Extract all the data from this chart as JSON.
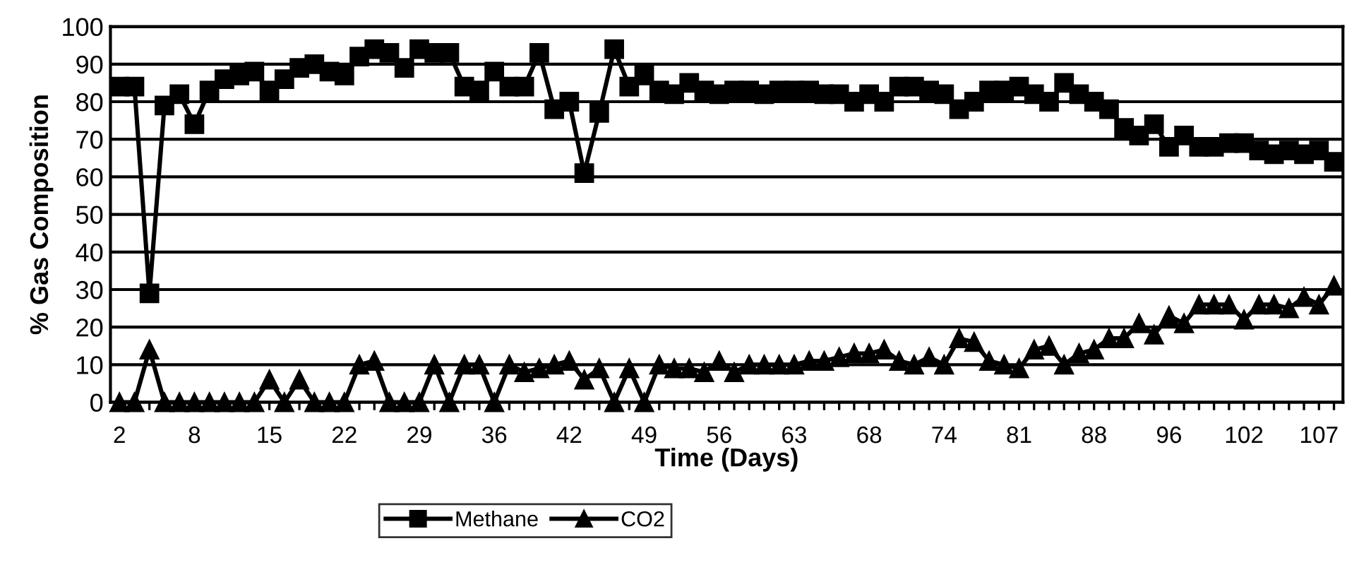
{
  "chart_data": {
    "type": "line",
    "xlabel": "Time (Days)",
    "ylabel": "% Gas Composition",
    "categories": [
      "2",
      null,
      null,
      null,
      null,
      "8",
      null,
      null,
      null,
      null,
      "15",
      null,
      null,
      null,
      null,
      "22",
      null,
      null,
      null,
      null,
      "29",
      null,
      null,
      null,
      null,
      "36",
      null,
      null,
      null,
      null,
      "42",
      null,
      null,
      null,
      null,
      "49",
      null,
      null,
      null,
      null,
      "56",
      null,
      null,
      null,
      null,
      "63",
      null,
      null,
      null,
      null,
      "68",
      null,
      null,
      null,
      null,
      "74",
      null,
      null,
      null,
      null,
      "81",
      null,
      null,
      null,
      null,
      "88",
      null,
      null,
      null,
      null,
      "96",
      null,
      null,
      null,
      null,
      "102",
      null,
      null,
      null,
      null,
      "107",
      null
    ],
    "series": [
      {
        "name": "Methane",
        "color": "#000000",
        "marker": "square",
        "values": [
          84,
          84,
          29,
          79,
          82,
          74,
          83,
          86,
          87,
          88,
          83,
          86,
          89,
          90,
          88,
          87,
          92,
          94,
          93,
          89,
          94,
          93,
          93,
          84,
          83,
          88,
          84,
          84,
          93,
          78,
          80,
          61,
          77,
          94,
          84,
          87,
          83,
          82,
          85,
          83,
          82,
          83,
          83,
          82,
          83,
          83,
          83,
          82,
          82,
          80,
          82,
          80,
          84,
          84,
          83,
          82,
          78,
          80,
          83,
          83,
          84,
          82,
          80,
          85,
          82,
          80,
          78,
          73,
          71,
          74,
          68,
          71,
          68,
          68,
          69,
          69,
          67,
          66,
          67,
          66,
          67,
          64
        ]
      },
      {
        "name": "CO2",
        "color": "#000000",
        "marker": "triangle",
        "values": [
          0,
          0,
          14,
          0,
          0,
          0,
          0,
          0,
          0,
          0,
          6,
          0,
          6,
          0,
          0,
          0,
          10,
          11,
          0,
          0,
          0,
          10,
          0,
          10,
          10,
          0,
          10,
          8,
          9,
          10,
          11,
          6,
          9,
          0,
          9,
          0,
          10,
          9,
          9,
          8,
          11,
          8,
          10,
          10,
          10,
          10,
          11,
          11,
          12,
          13,
          13,
          14,
          11,
          10,
          12,
          10,
          17,
          16,
          11,
          10,
          9,
          14,
          15,
          10,
          13,
          14,
          17,
          17,
          21,
          18,
          23,
          21,
          26,
          26,
          26,
          22,
          26,
          26,
          25,
          28,
          26,
          31
        ]
      }
    ],
    "ylim": [
      0,
      100
    ],
    "yticks": [
      0,
      10,
      20,
      30,
      40,
      50,
      60,
      70,
      80,
      90,
      100
    ],
    "grid": "y",
    "legend": "bottom",
    "line_style": "solid"
  }
}
